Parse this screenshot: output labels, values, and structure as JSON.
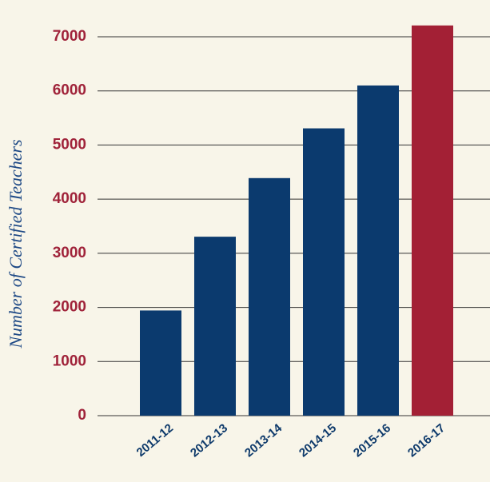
{
  "chart_data": {
    "type": "bar",
    "y_label": "Number of Certified Teachers",
    "categories": [
      "2011-12",
      "2012-13",
      "2013-14",
      "2014-15",
      "2015-16",
      "2016-17"
    ],
    "values": [
      1943,
      3306,
      4389,
      5308,
      6100,
      7209
    ],
    "colors": [
      "#0b3a6e",
      "#0b3a6e",
      "#0b3a6e",
      "#0b3a6e",
      "#0b3a6e",
      "#a32035"
    ],
    "ylim": [
      0,
      7000
    ],
    "yticks": [
      0,
      1000,
      2000,
      3000,
      4000,
      5000,
      6000,
      7000
    ],
    "grid": true
  }
}
